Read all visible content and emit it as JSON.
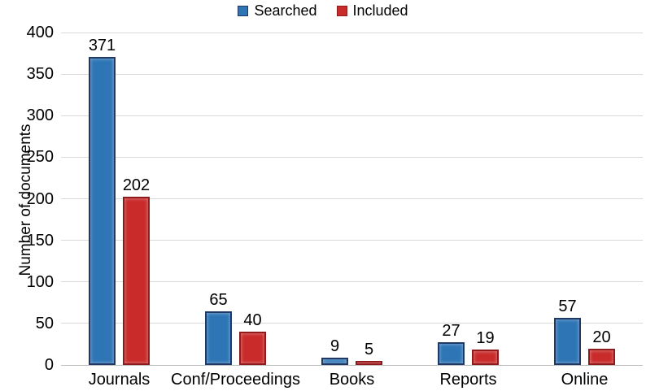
{
  "chart_data": {
    "type": "bar",
    "categories": [
      "Journals",
      "Conf/Proceedings",
      "Books",
      "Reports",
      "Online"
    ],
    "series": [
      {
        "name": "Searched",
        "color": "#2e75b6",
        "border_color": "#1f3864",
        "values": [
          371,
          65,
          9,
          27,
          57
        ]
      },
      {
        "name": "Included",
        "color": "#c92b2b",
        "border_color": "#8e1a1a",
        "values": [
          202,
          40,
          5,
          19,
          20
        ]
      }
    ],
    "title": "",
    "xlabel": "",
    "ylabel": "Number of documents",
    "ylim": [
      0,
      400
    ],
    "yticks": [
      0,
      50,
      100,
      150,
      200,
      250,
      300,
      350,
      400
    ],
    "grid": true,
    "legend_position": "top-center",
    "gridline_color": "#d9d9d9",
    "text_color": "#000000"
  }
}
